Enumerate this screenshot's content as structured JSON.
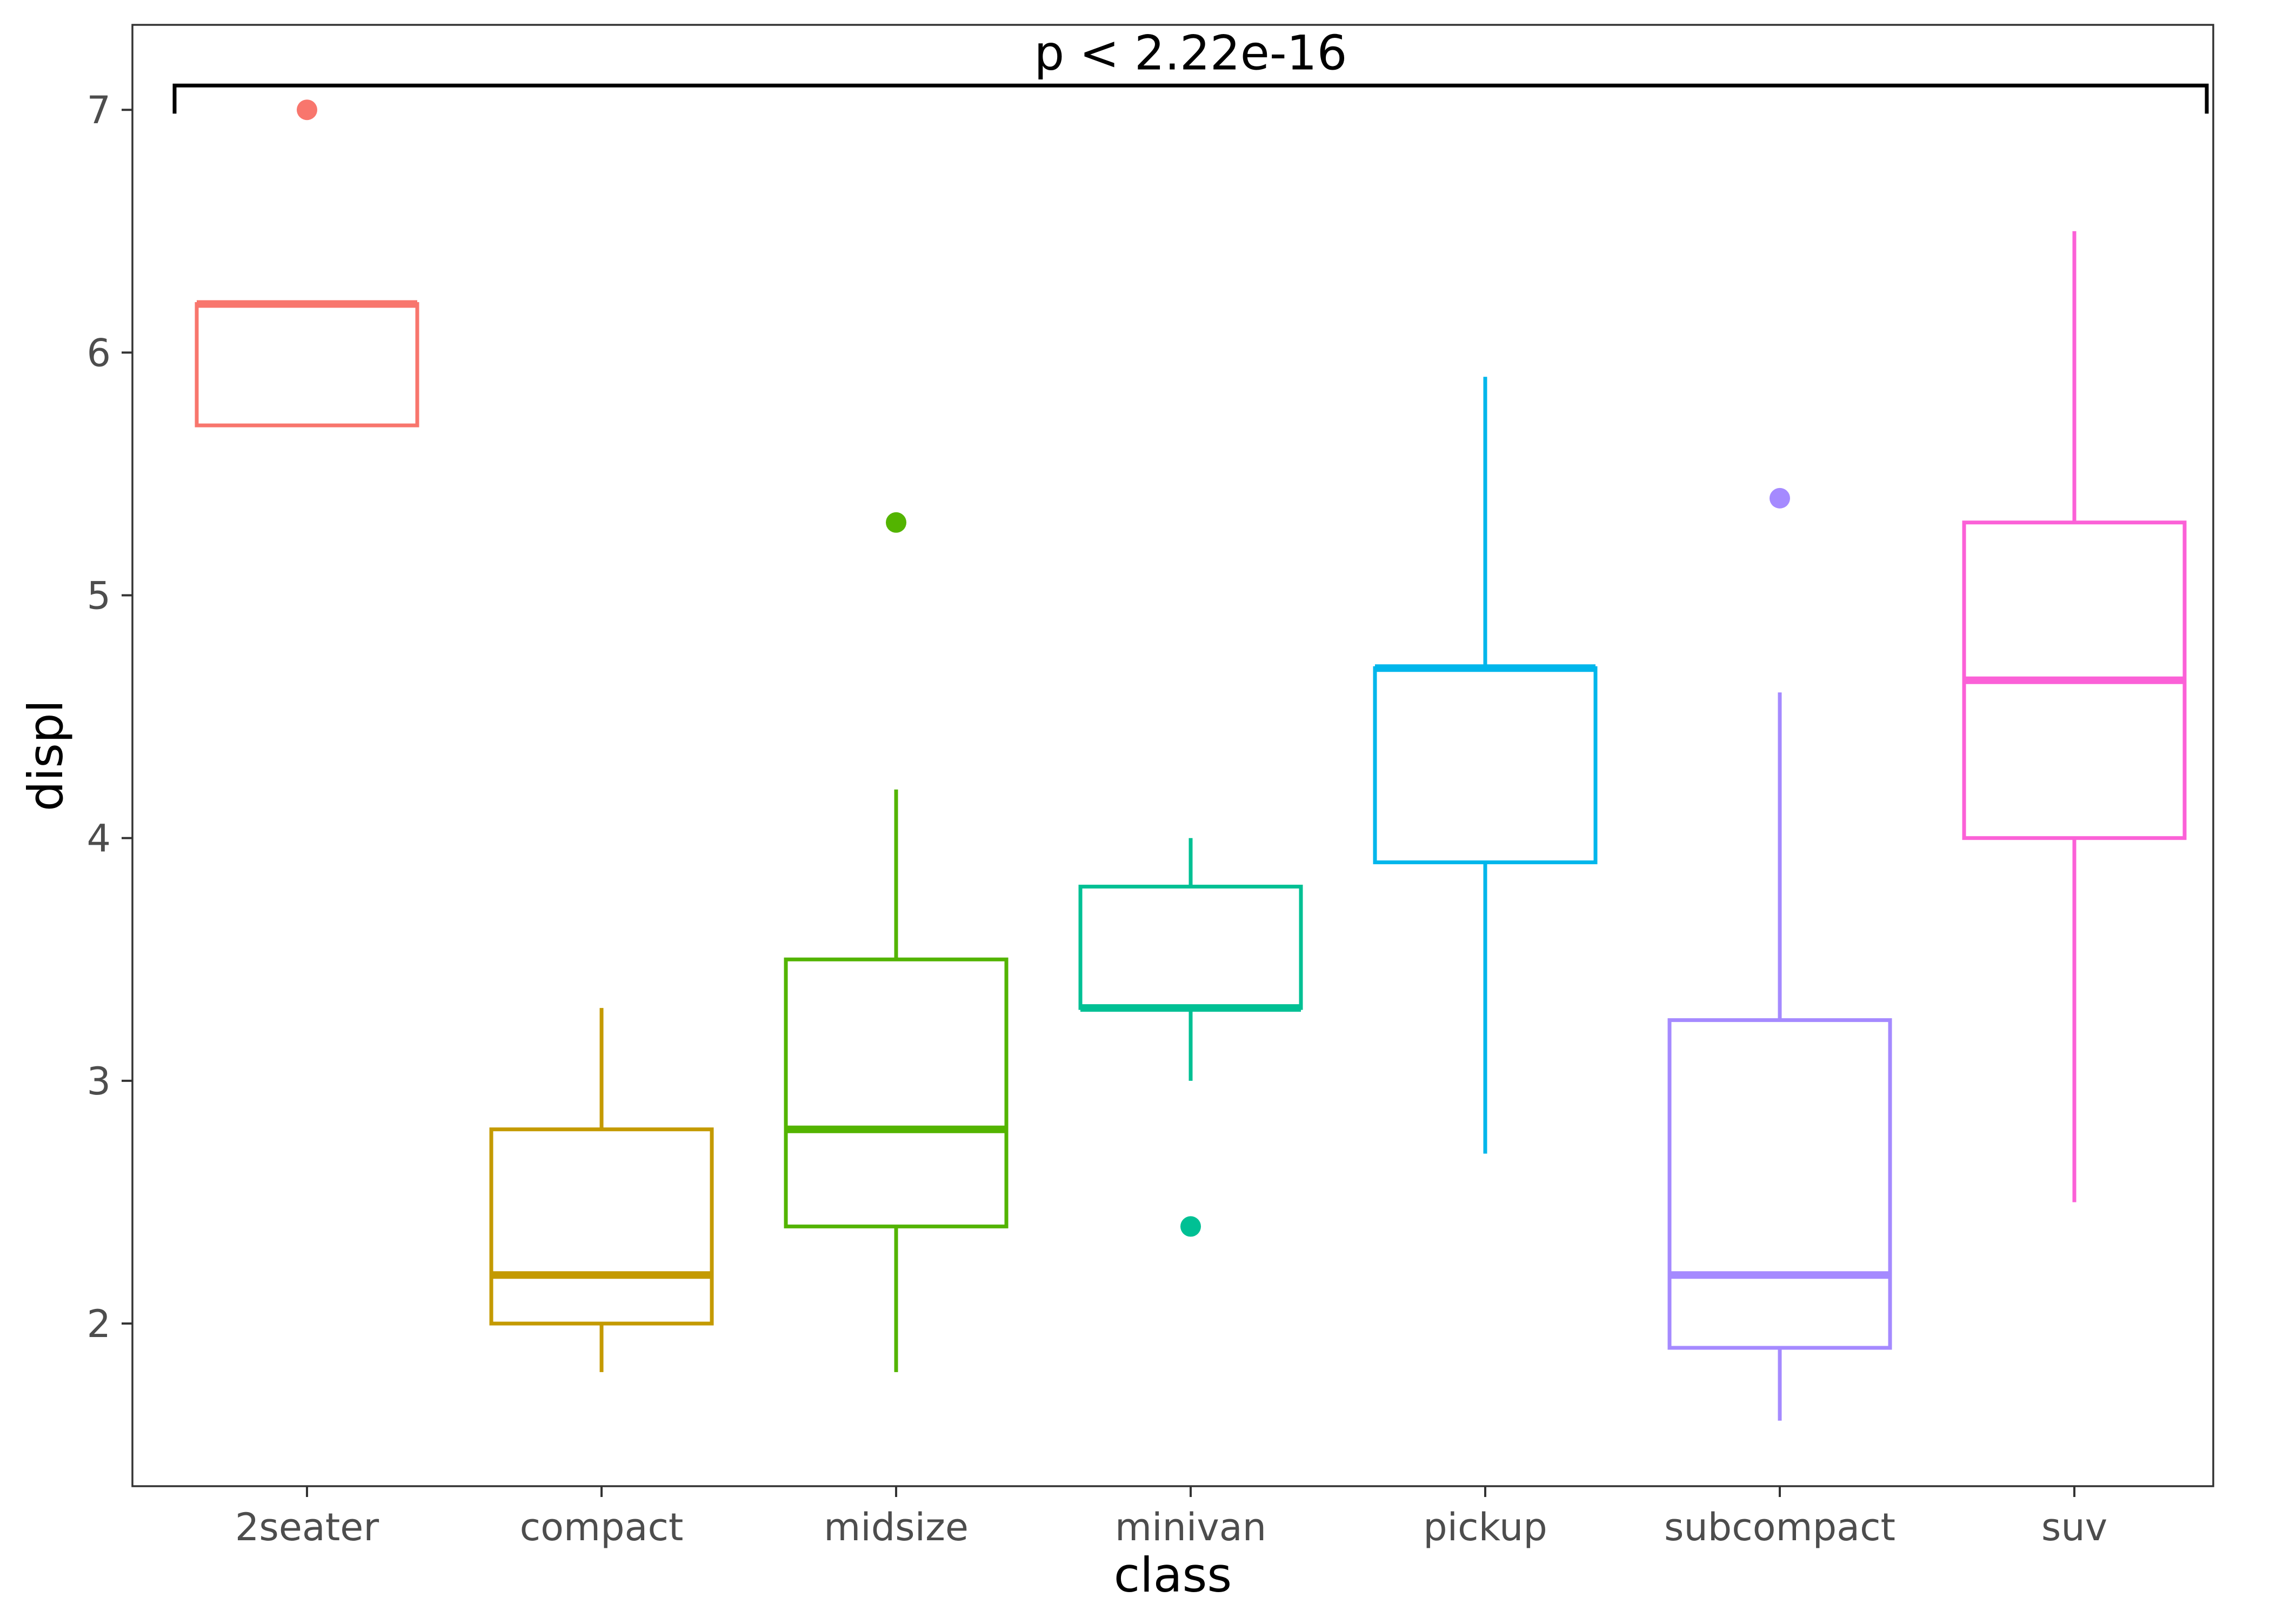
{
  "chart_data": {
    "type": "box",
    "xlabel": "class",
    "ylabel": "displ",
    "ylim": [
      1.33,
      7.35
    ],
    "yticks": [
      2,
      3,
      4,
      5,
      6,
      7
    ],
    "grid": false,
    "legend": "none",
    "annotation": {
      "text": "p < 2.22e-16",
      "bracket_from": "2seater",
      "bracket_to": "suv",
      "bracket_y": 7.1
    },
    "categories": [
      "2seater",
      "compact",
      "midsize",
      "minivan",
      "pickup",
      "subcompact",
      "suv"
    ],
    "boxes": [
      {
        "category": "2seater",
        "color": "#F8766D",
        "whisker_low": 5.7,
        "q1": 5.7,
        "median": 6.2,
        "q3": 6.2,
        "whisker_high": 6.2,
        "outliers": [
          7.0
        ]
      },
      {
        "category": "compact",
        "color": "#C49A00",
        "whisker_low": 1.8,
        "q1": 2.0,
        "median": 2.2,
        "q3": 2.8,
        "whisker_high": 3.3,
        "outliers": []
      },
      {
        "category": "midsize",
        "color": "#53B400",
        "whisker_low": 1.8,
        "q1": 2.4,
        "median": 2.8,
        "q3": 3.5,
        "whisker_high": 4.2,
        "outliers": [
          5.3
        ]
      },
      {
        "category": "minivan",
        "color": "#00C094",
        "whisker_low": 3.0,
        "q1": 3.3,
        "median": 3.3,
        "q3": 3.8,
        "whisker_high": 4.0,
        "outliers": [
          2.4
        ]
      },
      {
        "category": "pickup",
        "color": "#00B6EB",
        "whisker_low": 2.7,
        "q1": 3.9,
        "median": 4.7,
        "q3": 4.7,
        "whisker_high": 5.9,
        "outliers": []
      },
      {
        "category": "subcompact",
        "color": "#A58AFF",
        "whisker_low": 1.6,
        "q1": 1.9,
        "median": 2.2,
        "q3": 3.25,
        "whisker_high": 4.6,
        "outliers": [
          5.4
        ]
      },
      {
        "category": "suv",
        "color": "#FB61D7",
        "whisker_low": 2.5,
        "q1": 4.0,
        "median": 4.65,
        "q3": 5.3,
        "whisker_high": 6.5,
        "outliers": []
      }
    ]
  }
}
